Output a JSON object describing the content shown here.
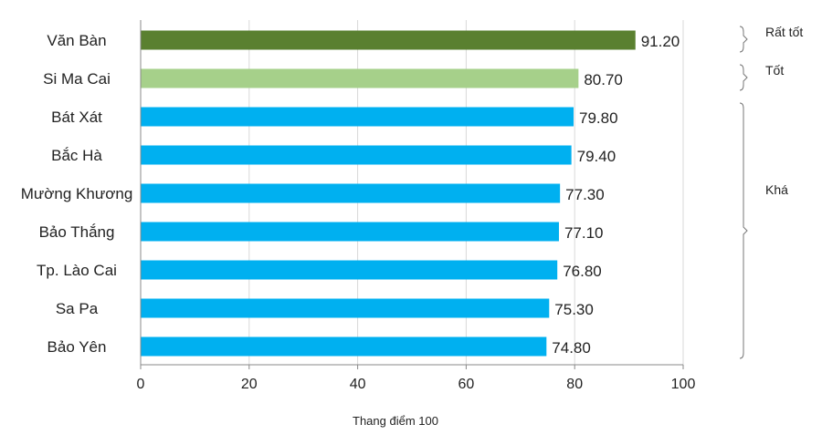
{
  "chart_data": {
    "type": "bar",
    "orientation": "horizontal",
    "categories": [
      "Văn Bàn",
      "Si Ma Cai",
      "Bát Xát",
      "Bắc Hà",
      "Mường Khương",
      "Bảo Thắng",
      "Tp. Lào Cai",
      "Sa Pa",
      "Bảo Yên"
    ],
    "values": [
      91.2,
      80.7,
      79.8,
      79.4,
      77.3,
      77.1,
      76.8,
      75.3,
      74.8
    ],
    "value_labels": [
      "91.20",
      "80.70",
      "79.80",
      "79.40",
      "77.30",
      "77.10",
      "76.80",
      "75.30",
      "74.80"
    ],
    "bar_colors": [
      "#5a8030",
      "#a6d08a",
      "#00b0f0",
      "#00b0f0",
      "#00b0f0",
      "#00b0f0",
      "#00b0f0",
      "#00b0f0",
      "#00b0f0"
    ],
    "xlabel": "Thang điểm 100",
    "xlim": [
      0,
      100
    ],
    "xticks": [
      0,
      20,
      40,
      60,
      80,
      100
    ],
    "grid": true,
    "gridline_color": "#d9d9d9",
    "groups": [
      {
        "label": "Rất tốt",
        "first": 0,
        "last": 0
      },
      {
        "label": "Tốt",
        "first": 1,
        "last": 1
      },
      {
        "label": "Khá",
        "first": 2,
        "last": 8
      }
    ]
  }
}
